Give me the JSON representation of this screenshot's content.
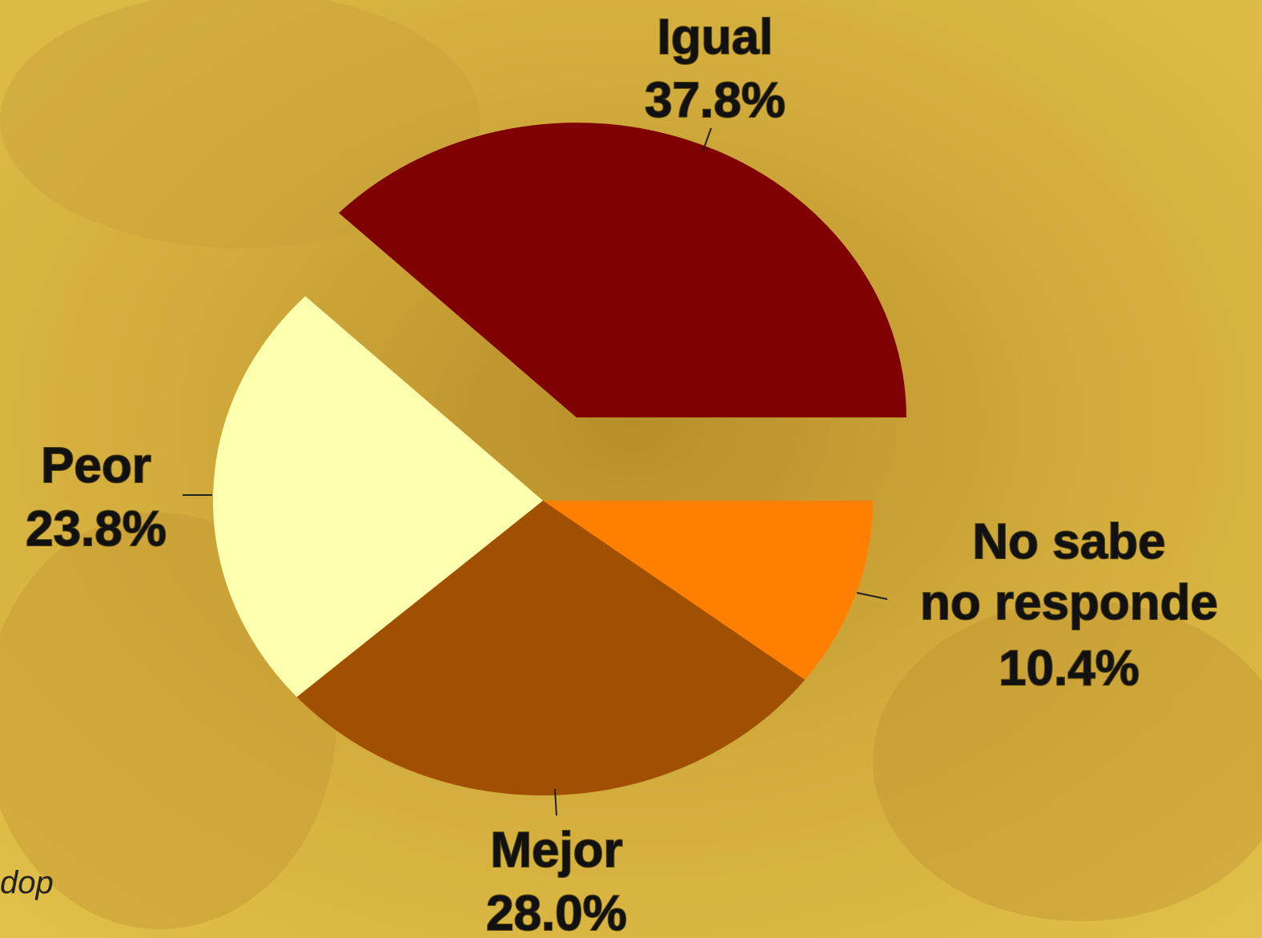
{
  "chart_data": {
    "type": "pie",
    "categories": [
      "No sabe\nno responde",
      "Mejor",
      "Peor",
      "Igual"
    ],
    "values": [
      10.4,
      28.0,
      23.8,
      37.8
    ],
    "value_labels": [
      "10.4%",
      "28.0%",
      "23.8%",
      "37.8%"
    ],
    "colors": [
      "#ff8000",
      "#a05000",
      "#ffffb0",
      "#7f0000"
    ]
  },
  "footer": "dop"
}
